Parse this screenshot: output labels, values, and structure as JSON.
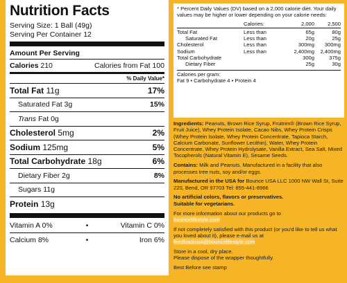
{
  "facts": {
    "title": "Nutrition Facts",
    "serving_size": "Serving Size: 1 Ball (49g)",
    "servings": "Serving Per Container 12",
    "amount_header": "Amount Per Serving",
    "calories": {
      "label": "Calories",
      "value": "210",
      "from_fat": "Calories from Fat 100"
    },
    "dv_header": "% Daily Value*",
    "rows": [
      {
        "label": "Total Fat",
        "amount": "11g",
        "dv": "17%",
        "bold": true
      },
      {
        "label": "Saturated Fat",
        "amount": "3g",
        "dv": "15%",
        "indent": true
      },
      {
        "label": "Trans",
        "amount": "Fat 0g",
        "italic": true,
        "indent": true
      },
      {
        "label": "Cholesterol",
        "amount": "5mg",
        "dv": "2%",
        "bold": true
      },
      {
        "label": "Sodium",
        "amount": "125mg",
        "dv": "5%",
        "bold": true
      },
      {
        "label": "Total Carbohydrate",
        "amount": "18g",
        "dv": "6%",
        "bold": true
      },
      {
        "label": "Dietary Fiber",
        "amount": "2g",
        "dv": "8%",
        "indent": true
      },
      {
        "label": "Sugars",
        "amount": "11g",
        "indent": true
      },
      {
        "label": "Protein",
        "amount": "13g",
        "bold": true
      }
    ],
    "separator": "•",
    "vitamins": [
      [
        "Vitamin A 0%",
        "Vitamin C 0%"
      ],
      [
        "Calcium 8%",
        "Iron 6%"
      ]
    ]
  },
  "dv_note": {
    "intro": "* Percent Daily Values (DV) based on a 2,000 calorie diet. Your daily values may be higher or lower depending on your calorie needs:",
    "header": [
      "Calories:",
      "2,000",
      "2,500"
    ],
    "rows": [
      {
        "label": "Total Fat",
        "qualifier": "Less than",
        "v2000": "65g",
        "v2500": "80g"
      },
      {
        "label": "Saturated Fat",
        "qualifier": "Less than",
        "v2000": "20g",
        "v2500": "25g",
        "indent": true
      },
      {
        "label": "Cholesterol",
        "qualifier": "Less than",
        "v2000": "300mg",
        "v2500": "300mg"
      },
      {
        "label": "Sodium",
        "qualifier": "Less than",
        "v2000": "2,400mg",
        "v2500": "2,400mg"
      },
      {
        "label": "Total Carbohydrate",
        "v2000": "300g",
        "v2500": "375g"
      },
      {
        "label": "Dietary Fiber",
        "v2000": "25g",
        "v2500": "30g",
        "indent": true
      }
    ],
    "per_gram_title": "Calories per gram:",
    "per_gram": "Fat 9 • Carbohydrate 4 • Protein 4"
  },
  "info": [
    [
      {
        "text": "Ingredients:",
        "bold": true
      },
      {
        "text": " Peanuts, Brown Rice Syrup, Fruitrim® (Brown Rice Syrup, Fruit Juice), Whey Protein Isolate, Cacao Nibs, Whey Protein Crisps (Whey Protein Isolate, Whey Protein Concentrate, Tapioca Starch, Calcium Carbonate, Sunflower Lecithin), Water, Whey Protein Concentrate, Whey Protein Hydrolysate, Vanilla Extract, Sea Salt, Mixed Tocopherols (Natural Vitamin E), Sesame Seeds."
      }
    ],
    [
      {
        "text": "Contains:",
        "bold": true
      },
      {
        "text": " Milk and Peanuts. Manufactured in a facility that also processes tree nuts, soy and/or eggs."
      }
    ],
    [
      {
        "text": "Manufactured in the USA for",
        "bold": true
      },
      {
        "text": " Bounce USA LLC 1000 NW Wall St, Suite 220, Bend, OR 97703 Tel: 855-441-8966"
      }
    ],
    [
      {
        "text": "No artificial colors, flavors or preservatives.",
        "bold": true,
        "block": true
      },
      {
        "text": "Suitable for vegetarians.",
        "bold": true,
        "block": true
      }
    ],
    [
      {
        "text": "For more information about our products go to",
        "block": true
      },
      {
        "text": "bouncelifestyle.com",
        "link": true
      }
    ],
    [
      {
        "text": "If not completely satisfied with this product (or you'd like to tell us what you loved about it), please e-mail us at",
        "block": true
      },
      {
        "text": "feedbackusa@bouncelifestyle.com",
        "link": true
      }
    ],
    [
      {
        "text": "Store in a cool, dry place.",
        "block": true
      },
      {
        "text": "Please dispose of the wrapper thoughtfully.",
        "block": true
      }
    ],
    [
      {
        "text": "Best Before see stamp"
      }
    ]
  ]
}
